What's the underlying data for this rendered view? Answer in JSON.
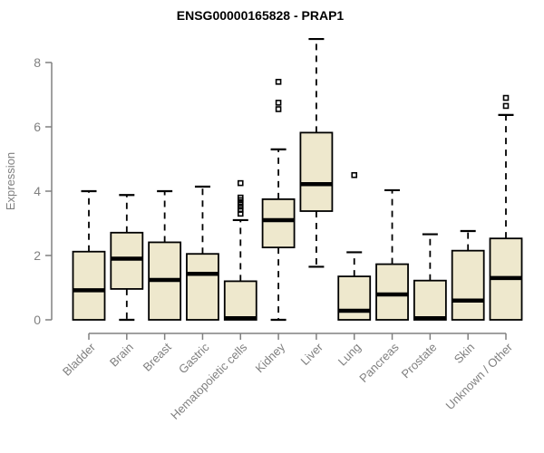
{
  "title": "ENSG00000165828 - PRAP1",
  "chart_data": {
    "type": "boxplot",
    "title": "ENSG00000165828 - PRAP1",
    "xlabel": "",
    "ylabel": "Expression",
    "ylim": [
      0,
      8
    ],
    "yticks": [
      0,
      2,
      4,
      6,
      8
    ],
    "grid": false,
    "legend": "none",
    "categories": [
      "Bladder",
      "Brain",
      "Breast",
      "Gastric",
      "Hematopoietic cells",
      "Kidney",
      "Liver",
      "Lung",
      "Pancreas",
      "Prostate",
      "Skin",
      "Unknown / Other"
    ],
    "boxes": [
      {
        "category": "Bladder",
        "whisker_low": 0,
        "q1": 0,
        "median": 0.92,
        "q3": 2.12,
        "whisker_high": 4.0,
        "outliers": []
      },
      {
        "category": "Brain",
        "whisker_low": 0,
        "q1": 0.96,
        "median": 1.9,
        "q3": 2.71,
        "whisker_high": 3.88,
        "outliers": []
      },
      {
        "category": "Breast",
        "whisker_low": 0,
        "q1": 0,
        "median": 1.24,
        "q3": 2.41,
        "whisker_high": 4.0,
        "outliers": []
      },
      {
        "category": "Gastric",
        "whisker_low": 0,
        "q1": 0,
        "median": 1.43,
        "q3": 2.05,
        "whisker_high": 4.14,
        "outliers": []
      },
      {
        "category": "Hematopoietic cells",
        "whisker_low": 0,
        "q1": 0,
        "median": 0.05,
        "q3": 1.2,
        "whisker_high": 3.1,
        "outliers": [
          3.3,
          3.42,
          3.52,
          3.62,
          3.72,
          3.8,
          4.25
        ]
      },
      {
        "category": "Kidney",
        "whisker_low": 0,
        "q1": 2.25,
        "median": 3.1,
        "q3": 3.75,
        "whisker_high": 5.3,
        "outliers": [
          6.55,
          6.75,
          7.4
        ]
      },
      {
        "category": "Liver",
        "whisker_low": 1.65,
        "q1": 3.38,
        "median": 4.22,
        "q3": 5.82,
        "whisker_high": 8.73,
        "outliers": []
      },
      {
        "category": "Lung",
        "whisker_low": 0,
        "q1": 0,
        "median": 0.28,
        "q3": 1.35,
        "whisker_high": 2.1,
        "outliers": [
          4.5
        ]
      },
      {
        "category": "Pancreas",
        "whisker_low": 0,
        "q1": 0,
        "median": 0.79,
        "q3": 1.73,
        "whisker_high": 4.03,
        "outliers": []
      },
      {
        "category": "Prostate",
        "whisker_low": 0,
        "q1": 0,
        "median": 0.05,
        "q3": 1.22,
        "whisker_high": 2.66,
        "outliers": []
      },
      {
        "category": "Skin",
        "whisker_low": 0,
        "q1": 0,
        "median": 0.6,
        "q3": 2.15,
        "whisker_high": 2.76,
        "outliers": []
      },
      {
        "category": "Unknown / Other",
        "whisker_low": 0,
        "q1": 0,
        "median": 1.3,
        "q3": 2.53,
        "whisker_high": 6.37,
        "outliers": [
          6.65,
          6.9
        ]
      }
    ],
    "colors": {
      "box_fill": "#EEE8CD",
      "box_stroke": "#000000",
      "median": "#000000",
      "whisker": "#000000",
      "axis": "#808080",
      "tick_text": "#808080",
      "title_text": "#000000"
    }
  }
}
